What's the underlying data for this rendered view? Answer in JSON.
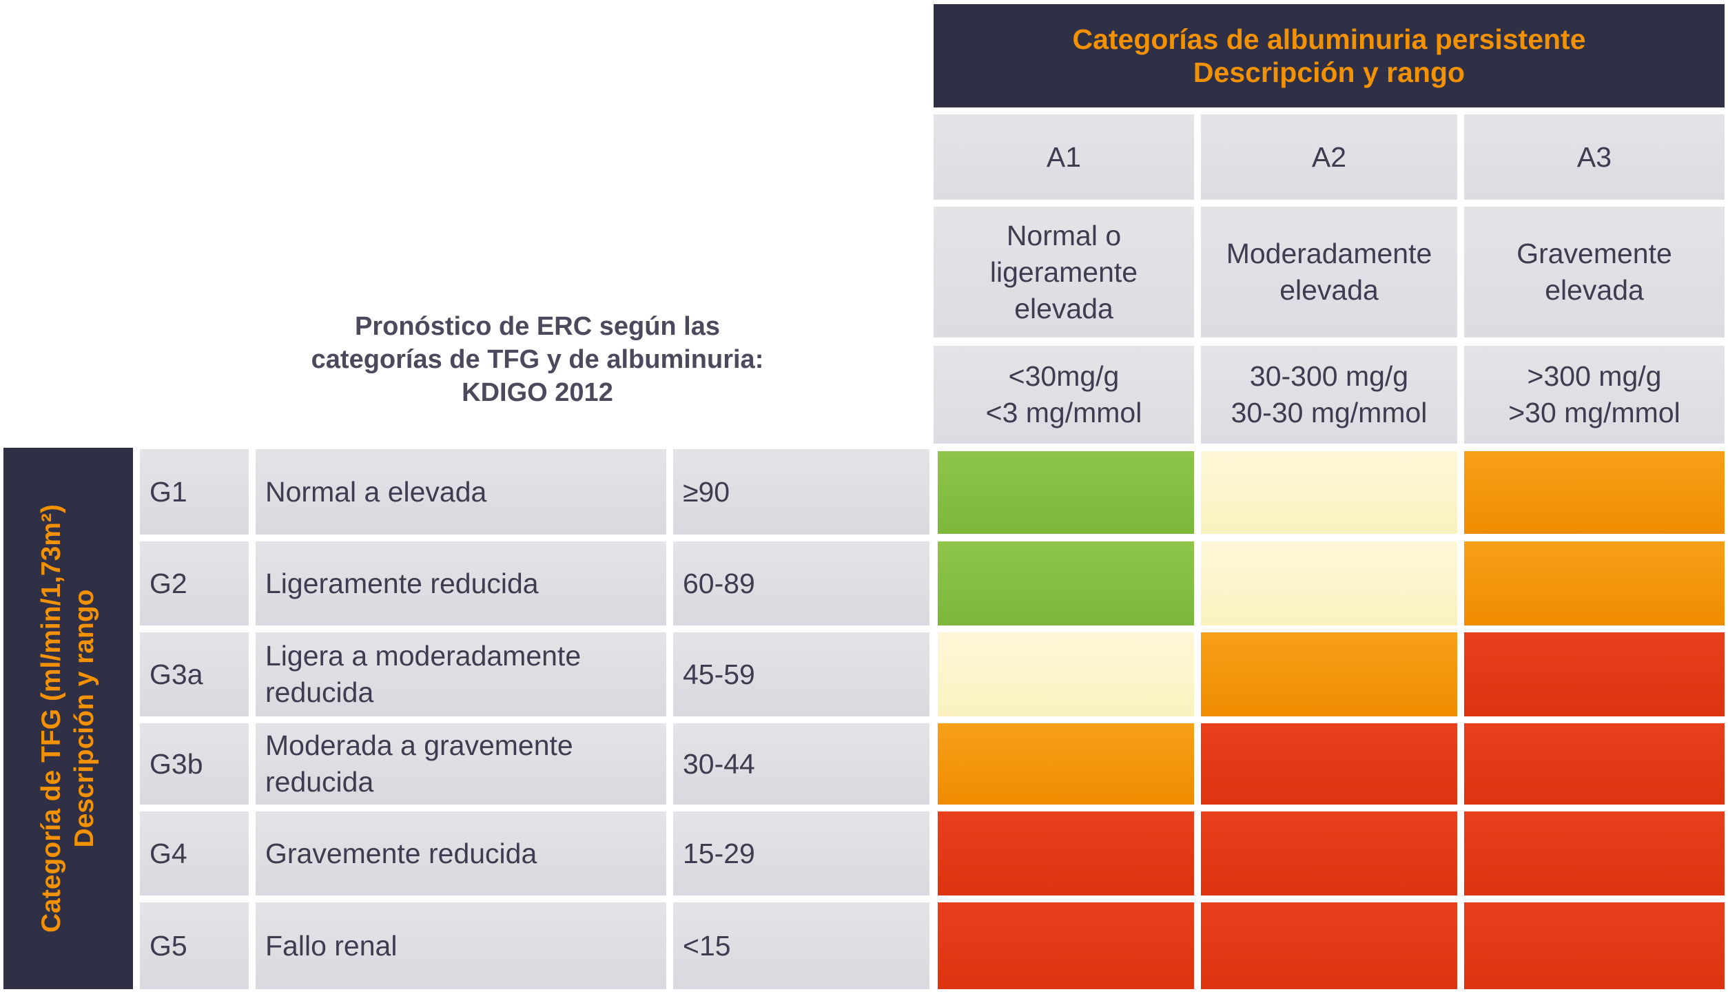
{
  "albuminuria_header": {
    "line1": "Categorías de albuminuria persistente",
    "line2": "Descripción y rango"
  },
  "albuminuria_categories": [
    {
      "code": "A1",
      "description": [
        "Normal o",
        "ligeramente",
        "elevada"
      ],
      "range": [
        "<30mg/g",
        "<3 mg/mmol"
      ]
    },
    {
      "code": "A2",
      "description": [
        "Moderadamente",
        "elevada"
      ],
      "range": [
        "30-300 mg/g",
        "30-30 mg/mmol"
      ]
    },
    {
      "code": "A3",
      "description": [
        "Gravemente",
        "elevada"
      ],
      "range": [
        ">300 mg/g",
        ">30 mg/mmol"
      ]
    }
  ],
  "title": {
    "line1": "Pronóstico de ERC según las",
    "line2": "categorías de TFG y de albuminuria:",
    "line3": "KDIGO 2012"
  },
  "tfg_header": {
    "line1": "Categoría de TFG (ml/min/1,73m²)",
    "line2": "Descripción y rango"
  },
  "tfg_rows": [
    {
      "code": "G1",
      "description": [
        "Normal a elevada"
      ],
      "range": "≥90",
      "risk": [
        "green",
        "yellow",
        "orange"
      ]
    },
    {
      "code": "G2",
      "description": [
        "Ligeramente reducida"
      ],
      "range": "60-89",
      "risk": [
        "green",
        "yellow",
        "orange"
      ]
    },
    {
      "code": "G3a",
      "description": [
        "Ligera a moderadamente",
        "reducida"
      ],
      "range": "45-59",
      "risk": [
        "yellow",
        "orange",
        "red"
      ]
    },
    {
      "code": "G3b",
      "description": [
        "Moderada a gravemente",
        "reducida"
      ],
      "range": "30-44",
      "risk": [
        "orange",
        "red",
        "red"
      ]
    },
    {
      "code": "G4",
      "description": [
        "Gravemente reducida"
      ],
      "range": "15-29",
      "risk": [
        "red",
        "red",
        "red"
      ]
    },
    {
      "code": "G5",
      "description": [
        "Fallo renal"
      ],
      "range": "<15",
      "risk": [
        "red",
        "red",
        "red"
      ]
    }
  ],
  "colors": {
    "dark": "#2f2f45",
    "accent_orange_text": "#f39200",
    "green": "#82bd42",
    "yellow": "#fcf4cc",
    "orange": "#f39200",
    "red": "#e33a16"
  }
}
